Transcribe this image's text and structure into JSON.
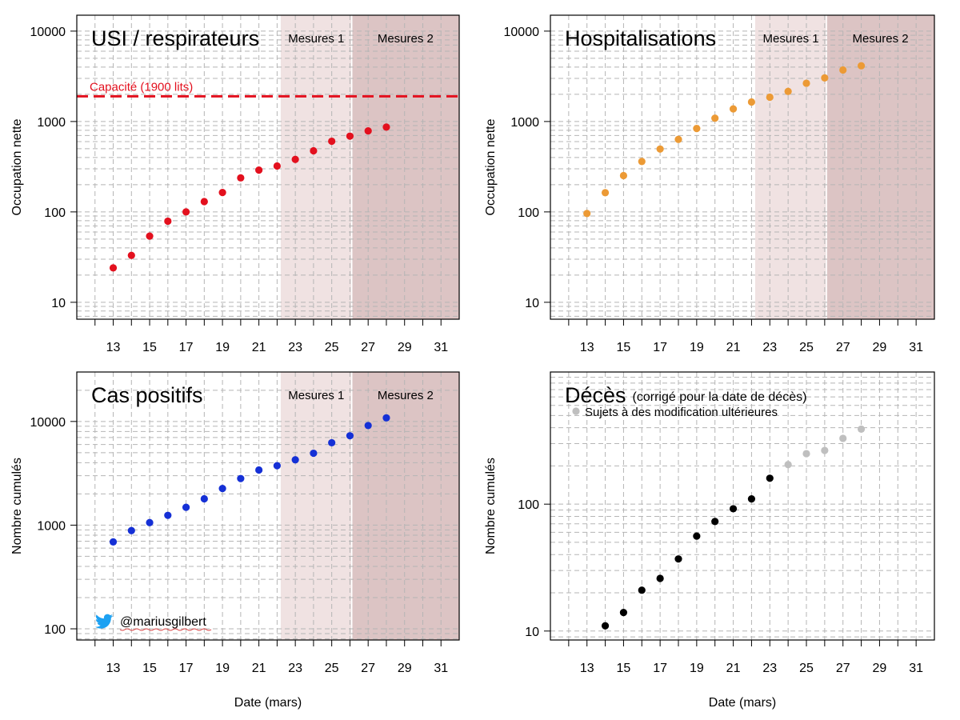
{
  "figure": {
    "x_axis_label": "Date (mars)",
    "x_ticks": [
      13,
      15,
      17,
      19,
      21,
      23,
      25,
      27,
      29,
      31
    ],
    "xlim": [
      11,
      32
    ],
    "periods": [
      {
        "label": "Mesures 1",
        "start": 22.2,
        "end": 26.1,
        "color": "#f0e2e2"
      },
      {
        "label": "Mesures 2",
        "start": 26.1,
        "end": 32,
        "color": "#dcc4c4"
      }
    ],
    "credit": {
      "handle": "@mariusgilbert",
      "icon": "twitter-bird-icon",
      "icon_color": "#1da1f2"
    }
  },
  "chart_data": [
    {
      "id": "usi",
      "type": "scatter",
      "title": "USI / respirateurs",
      "subtitle": "",
      "ylabel": "Occupation nette",
      "xlabel": "Date (mars)",
      "y_scale": "log",
      "ylim": [
        6.5,
        15000
      ],
      "y_ticks": [
        10,
        100,
        1000,
        10000
      ],
      "y_tick_labels": [
        "10",
        "100",
        "1000",
        "10000"
      ],
      "color": "#e3101e",
      "show_periods": true,
      "reference_line": {
        "value": 1900,
        "label": "Capacité (1900 lits)",
        "color": "#e3101e"
      },
      "x": [
        13,
        14,
        15,
        16,
        17,
        18,
        19,
        20,
        21,
        22,
        23,
        24,
        25,
        26,
        27,
        28
      ],
      "y": [
        24,
        33,
        54,
        79,
        100,
        130,
        164,
        238,
        290,
        322,
        381,
        474,
        605,
        689,
        787,
        867
      ]
    },
    {
      "id": "hosp",
      "type": "scatter",
      "title": "Hospitalisations",
      "subtitle": "",
      "ylabel": "Occupation nette",
      "xlabel": "Date (mars)",
      "y_scale": "log",
      "ylim": [
        6.5,
        15000
      ],
      "y_ticks": [
        10,
        100,
        1000,
        10000
      ],
      "y_tick_labels": [
        "10",
        "100",
        "1000",
        "10000"
      ],
      "color": "#ec9a35",
      "show_periods": true,
      "x": [
        13,
        14,
        15,
        16,
        17,
        18,
        19,
        20,
        21,
        22,
        23,
        24,
        25,
        26,
        27,
        28
      ],
      "y": [
        96,
        163,
        252,
        361,
        496,
        634,
        837,
        1089,
        1380,
        1643,
        1859,
        2152,
        2650,
        3035,
        3717,
        4138
      ]
    },
    {
      "id": "cas",
      "type": "scatter",
      "title": "Cas positifs",
      "subtitle": "",
      "ylabel": "Nombre cumulés",
      "xlabel": "Date (mars)",
      "y_scale": "log",
      "ylim": [
        78,
        30000
      ],
      "y_ticks": [
        100,
        1000,
        10000
      ],
      "y_tick_labels": [
        "100",
        "1000",
        "10000"
      ],
      "color": "#1530d6",
      "show_periods": true,
      "x": [
        13,
        14,
        15,
        16,
        17,
        18,
        19,
        20,
        21,
        22,
        23,
        24,
        25,
        26,
        27,
        28
      ],
      "y": [
        689,
        886,
        1058,
        1243,
        1486,
        1795,
        2257,
        2815,
        3401,
        3743,
        4269,
        4937,
        6235,
        7284,
        9134,
        10836
      ]
    },
    {
      "id": "deces",
      "type": "scatter",
      "title": "Décès",
      "subtitle": "(corrigé pour la date de décès)",
      "ylabel": "Nombre cumulés",
      "xlabel": "Date (mars)",
      "y_scale": "log",
      "ylim": [
        8.5,
        1100
      ],
      "y_ticks": [
        10,
        100
      ],
      "y_tick_labels": [
        "10",
        "100"
      ],
      "color": "#000000",
      "show_periods": false,
      "legend": {
        "label": "Sujets à des modification ultérieures",
        "color": "#bfbfbf"
      },
      "series": [
        {
          "status": "final",
          "color": "#000000",
          "x": [
            14,
            15,
            16,
            17,
            18,
            19,
            20,
            21,
            22,
            23
          ],
          "y": [
            11,
            14,
            21,
            26,
            37,
            56,
            73,
            92,
            110,
            160
          ]
        },
        {
          "status": "provisional",
          "color": "#bfbfbf",
          "x": [
            24,
            25,
            26,
            27,
            28
          ],
          "y": [
            205,
            250,
            265,
            330,
            390
          ]
        }
      ]
    }
  ]
}
